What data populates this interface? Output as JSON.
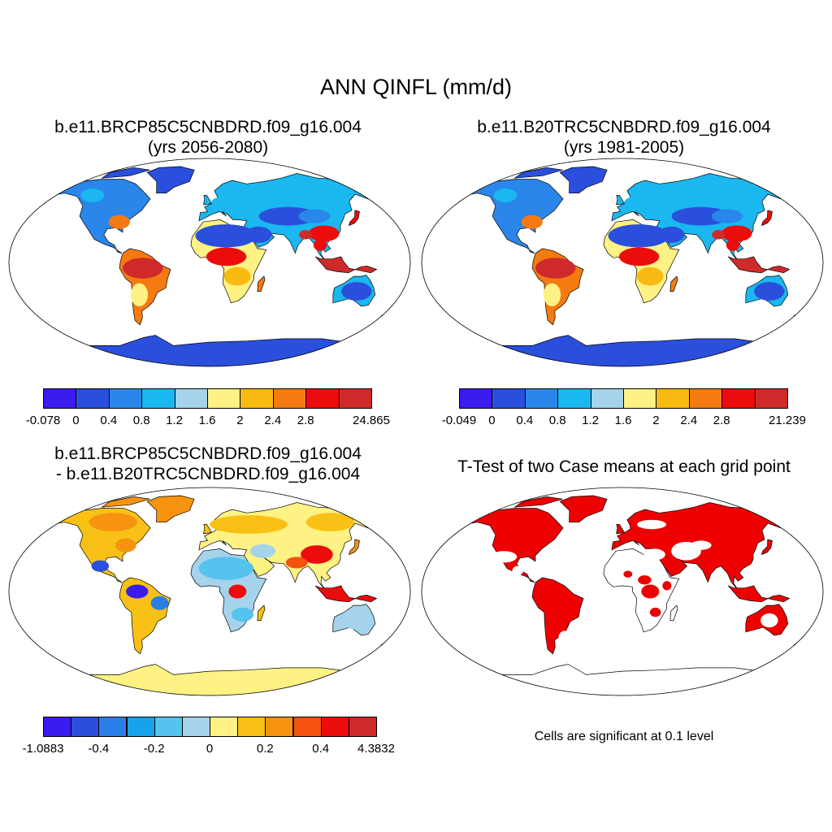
{
  "title": "ANN QINFL (mm/d)",
  "panels": [
    {
      "id": "case",
      "title_line1": "b.e11.BRCP85C5CNBDRD.f09_g16.004",
      "title_line2": "(yrs 2056-2080)",
      "colorbar": {
        "colors": [
          "#3b1cf0",
          "#2a4fdc",
          "#2a86ea",
          "#1ab7f0",
          "#a5d3ec",
          "#fdf283",
          "#f9bb12",
          "#f57a11",
          "#ec0c0c",
          "#cf2a2a"
        ],
        "labels": [
          "-0.078",
          "0",
          "0.4",
          "0.8",
          "1.2",
          "1.6",
          "2",
          "2.4",
          "2.8",
          "24.865"
        ]
      }
    },
    {
      "id": "control",
      "title_line1": "b.e11.B20TRC5CNBDRD.f09_g16.004",
      "title_line2": "(yrs 1981-2005)",
      "colorbar": {
        "colors": [
          "#3b1cf0",
          "#2a4fdc",
          "#2a86ea",
          "#1ab7f0",
          "#a5d3ec",
          "#fdf283",
          "#f9bb12",
          "#f57a11",
          "#ec0c0c",
          "#cf2a2a"
        ],
        "labels": [
          "-0.049",
          "0",
          "0.4",
          "0.8",
          "1.2",
          "1.6",
          "2",
          "2.4",
          "2.8",
          "21.239"
        ]
      }
    },
    {
      "id": "difference",
      "title_line1": "b.e11.BRCP85C5CNBDRD.f09_g16.004",
      "title_line2": "- b.e11.B20TRC5CNBDRD.f09_g16.004",
      "colorbar": {
        "colors": [
          "#3b1cf0",
          "#2a4fdc",
          "#2a7fe6",
          "#17a3ec",
          "#55c3ee",
          "#a5d3ec",
          "#fdf283",
          "#f9c116",
          "#f7930f",
          "#f5520f",
          "#ec0c0c",
          "#cf2a2a"
        ],
        "labels": [
          "-1.0883",
          "-0.4",
          "-0.2",
          "0",
          "0.2",
          "0.4",
          "4.3832"
        ]
      }
    },
    {
      "id": "ttest",
      "title_line1": "T-Test of two Case means at each grid point",
      "note": "Cells are significant at 0.1 level",
      "color": "#ee0000"
    }
  ]
}
